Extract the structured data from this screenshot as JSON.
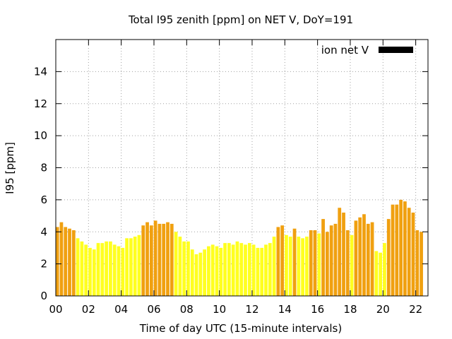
{
  "chart_data": {
    "type": "bar",
    "title": "Total I95 zenith [ppm] on NET V, DoY=191",
    "xlabel": "Time of day UTC (15-minute intervals)",
    "ylabel": "I95 [ppm]",
    "xlim": [
      0,
      22.75
    ],
    "ylim": [
      0,
      16
    ],
    "grid": true,
    "legend": {
      "position": "top-right",
      "label": "ion net V",
      "color": "#000000"
    },
    "xticks": [
      {
        "value": 0,
        "label": "00"
      },
      {
        "value": 2,
        "label": "02"
      },
      {
        "value": 4,
        "label": "04"
      },
      {
        "value": 6,
        "label": "06"
      },
      {
        "value": 8,
        "label": "08"
      },
      {
        "value": 10,
        "label": "10"
      },
      {
        "value": 12,
        "label": "12"
      },
      {
        "value": 14,
        "label": "14"
      },
      {
        "value": 16,
        "label": "16"
      },
      {
        "value": 18,
        "label": "18"
      },
      {
        "value": 20,
        "label": "20"
      },
      {
        "value": 22,
        "label": "22"
      }
    ],
    "yticks": [
      {
        "value": 0,
        "label": "0"
      },
      {
        "value": 2,
        "label": "2"
      },
      {
        "value": 4,
        "label": "4"
      },
      {
        "value": 6,
        "label": "6"
      },
      {
        "value": 8,
        "label": "8"
      },
      {
        "value": 10,
        "label": "10"
      },
      {
        "value": 12,
        "label": "12"
      },
      {
        "value": 14,
        "label": "14"
      }
    ],
    "colors": {
      "orange": "#f0a010",
      "yellow": "#ffff20"
    },
    "bars": [
      {
        "x": 0.0,
        "value": 4.3,
        "color": "orange"
      },
      {
        "x": 0.25,
        "value": 4.6,
        "color": "orange"
      },
      {
        "x": 0.5,
        "value": 4.3,
        "color": "orange"
      },
      {
        "x": 0.75,
        "value": 4.2,
        "color": "orange"
      },
      {
        "x": 1.0,
        "value": 4.1,
        "color": "orange"
      },
      {
        "x": 1.25,
        "value": 3.6,
        "color": "yellow"
      },
      {
        "x": 1.5,
        "value": 3.4,
        "color": "yellow"
      },
      {
        "x": 1.75,
        "value": 3.2,
        "color": "yellow"
      },
      {
        "x": 2.0,
        "value": 3.0,
        "color": "yellow"
      },
      {
        "x": 2.25,
        "value": 2.9,
        "color": "yellow"
      },
      {
        "x": 2.5,
        "value": 3.3,
        "color": "yellow"
      },
      {
        "x": 2.75,
        "value": 3.3,
        "color": "yellow"
      },
      {
        "x": 3.0,
        "value": 3.4,
        "color": "yellow"
      },
      {
        "x": 3.25,
        "value": 3.4,
        "color": "yellow"
      },
      {
        "x": 3.5,
        "value": 3.2,
        "color": "yellow"
      },
      {
        "x": 3.75,
        "value": 3.1,
        "color": "yellow"
      },
      {
        "x": 4.0,
        "value": 3.0,
        "color": "yellow"
      },
      {
        "x": 4.25,
        "value": 3.6,
        "color": "yellow"
      },
      {
        "x": 4.5,
        "value": 3.6,
        "color": "yellow"
      },
      {
        "x": 4.75,
        "value": 3.7,
        "color": "yellow"
      },
      {
        "x": 5.0,
        "value": 3.8,
        "color": "yellow"
      },
      {
        "x": 5.25,
        "value": 4.4,
        "color": "orange"
      },
      {
        "x": 5.5,
        "value": 4.6,
        "color": "orange"
      },
      {
        "x": 5.75,
        "value": 4.4,
        "color": "orange"
      },
      {
        "x": 6.0,
        "value": 4.7,
        "color": "orange"
      },
      {
        "x": 6.25,
        "value": 4.5,
        "color": "orange"
      },
      {
        "x": 6.5,
        "value": 4.5,
        "color": "orange"
      },
      {
        "x": 6.75,
        "value": 4.6,
        "color": "orange"
      },
      {
        "x": 7.0,
        "value": 4.5,
        "color": "orange"
      },
      {
        "x": 7.25,
        "value": 4.0,
        "color": "yellow"
      },
      {
        "x": 7.5,
        "value": 3.7,
        "color": "yellow"
      },
      {
        "x": 7.75,
        "value": 3.4,
        "color": "yellow"
      },
      {
        "x": 8.0,
        "value": 3.4,
        "color": "yellow"
      },
      {
        "x": 8.25,
        "value": 2.9,
        "color": "yellow"
      },
      {
        "x": 8.5,
        "value": 2.6,
        "color": "yellow"
      },
      {
        "x": 8.75,
        "value": 2.7,
        "color": "yellow"
      },
      {
        "x": 9.0,
        "value": 2.9,
        "color": "yellow"
      },
      {
        "x": 9.25,
        "value": 3.1,
        "color": "yellow"
      },
      {
        "x": 9.5,
        "value": 3.2,
        "color": "yellow"
      },
      {
        "x": 9.75,
        "value": 3.1,
        "color": "yellow"
      },
      {
        "x": 10.0,
        "value": 3.0,
        "color": "yellow"
      },
      {
        "x": 10.25,
        "value": 3.3,
        "color": "yellow"
      },
      {
        "x": 10.5,
        "value": 3.3,
        "color": "yellow"
      },
      {
        "x": 10.75,
        "value": 3.2,
        "color": "yellow"
      },
      {
        "x": 11.0,
        "value": 3.4,
        "color": "yellow"
      },
      {
        "x": 11.25,
        "value": 3.3,
        "color": "yellow"
      },
      {
        "x": 11.5,
        "value": 3.2,
        "color": "yellow"
      },
      {
        "x": 11.75,
        "value": 3.3,
        "color": "yellow"
      },
      {
        "x": 12.0,
        "value": 3.2,
        "color": "yellow"
      },
      {
        "x": 12.25,
        "value": 3.0,
        "color": "yellow"
      },
      {
        "x": 12.5,
        "value": 3.0,
        "color": "yellow"
      },
      {
        "x": 12.75,
        "value": 3.2,
        "color": "yellow"
      },
      {
        "x": 13.0,
        "value": 3.3,
        "color": "yellow"
      },
      {
        "x": 13.25,
        "value": 3.7,
        "color": "yellow"
      },
      {
        "x": 13.5,
        "value": 4.3,
        "color": "orange"
      },
      {
        "x": 13.75,
        "value": 4.4,
        "color": "orange"
      },
      {
        "x": 14.0,
        "value": 3.8,
        "color": "yellow"
      },
      {
        "x": 14.25,
        "value": 3.7,
        "color": "yellow"
      },
      {
        "x": 14.5,
        "value": 4.2,
        "color": "orange"
      },
      {
        "x": 14.75,
        "value": 3.7,
        "color": "yellow"
      },
      {
        "x": 15.0,
        "value": 3.6,
        "color": "yellow"
      },
      {
        "x": 15.25,
        "value": 3.7,
        "color": "yellow"
      },
      {
        "x": 15.5,
        "value": 4.1,
        "color": "orange"
      },
      {
        "x": 15.75,
        "value": 4.1,
        "color": "orange"
      },
      {
        "x": 16.0,
        "value": 3.9,
        "color": "yellow"
      },
      {
        "x": 16.25,
        "value": 4.8,
        "color": "orange"
      },
      {
        "x": 16.5,
        "value": 4.0,
        "color": "orange"
      },
      {
        "x": 16.75,
        "value": 4.4,
        "color": "orange"
      },
      {
        "x": 17.0,
        "value": 4.5,
        "color": "orange"
      },
      {
        "x": 17.25,
        "value": 5.5,
        "color": "orange"
      },
      {
        "x": 17.5,
        "value": 5.2,
        "color": "orange"
      },
      {
        "x": 17.75,
        "value": 4.1,
        "color": "orange"
      },
      {
        "x": 18.0,
        "value": 3.8,
        "color": "yellow"
      },
      {
        "x": 18.25,
        "value": 4.7,
        "color": "orange"
      },
      {
        "x": 18.5,
        "value": 4.9,
        "color": "orange"
      },
      {
        "x": 18.75,
        "value": 5.1,
        "color": "orange"
      },
      {
        "x": 19.0,
        "value": 4.5,
        "color": "orange"
      },
      {
        "x": 19.25,
        "value": 4.6,
        "color": "orange"
      },
      {
        "x": 19.5,
        "value": 2.8,
        "color": "yellow"
      },
      {
        "x": 19.75,
        "value": 2.7,
        "color": "yellow"
      },
      {
        "x": 20.0,
        "value": 3.3,
        "color": "yellow"
      },
      {
        "x": 20.25,
        "value": 4.8,
        "color": "orange"
      },
      {
        "x": 20.5,
        "value": 5.7,
        "color": "orange"
      },
      {
        "x": 20.75,
        "value": 5.7,
        "color": "orange"
      },
      {
        "x": 21.0,
        "value": 6.0,
        "color": "orange"
      },
      {
        "x": 21.25,
        "value": 5.9,
        "color": "orange"
      },
      {
        "x": 21.5,
        "value": 5.5,
        "color": "orange"
      },
      {
        "x": 21.75,
        "value": 5.2,
        "color": "orange"
      },
      {
        "x": 22.0,
        "value": 4.1,
        "color": "orange"
      },
      {
        "x": 22.25,
        "value": 4.0,
        "color": "orange"
      }
    ]
  }
}
